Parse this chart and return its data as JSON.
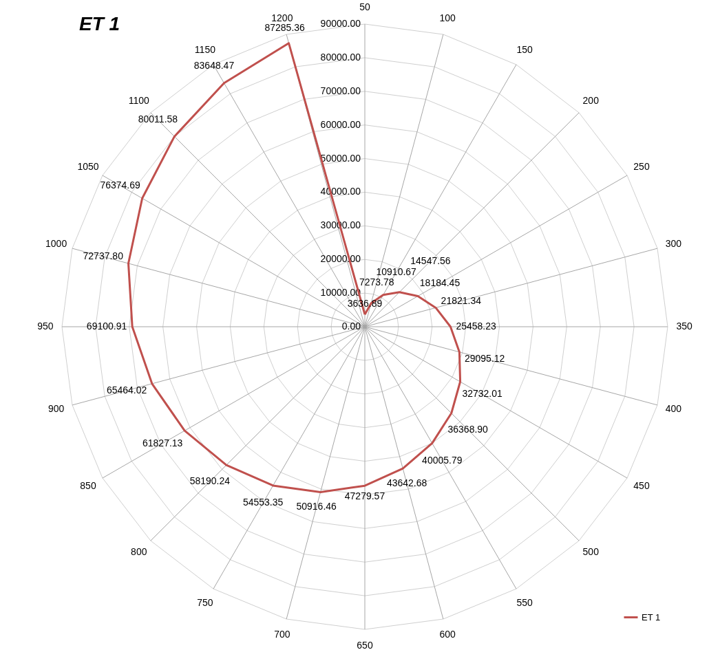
{
  "chart_data": {
    "type": "radar",
    "title": "ET 1",
    "categories": [
      "50",
      "100",
      "150",
      "200",
      "250",
      "300",
      "350",
      "400",
      "450",
      "500",
      "550",
      "600",
      "650",
      "700",
      "750",
      "800",
      "850",
      "900",
      "950",
      "1000",
      "1050",
      "1100",
      "1150",
      "1200"
    ],
    "series": [
      {
        "name": "ET 1",
        "color": "#c0504d",
        "values": [
          3636.89,
          7273.78,
          10910.67,
          14547.56,
          18184.45,
          21821.34,
          25458.23,
          29095.12,
          32732.01,
          36368.9,
          40005.79,
          43642.68,
          47279.57,
          50916.46,
          54553.35,
          58190.24,
          61827.13,
          65464.02,
          69100.91,
          72737.8,
          76374.69,
          80011.58,
          83648.47,
          87285.36
        ],
        "value_labels": [
          "3636.89",
          "7273.78",
          "10910.67",
          "14547.56",
          "18184.45",
          "21821.34",
          "25458.23",
          "29095.12",
          "32732.01",
          "36368.90",
          "40005.79",
          "43642.68",
          "47279.57",
          "50916.46",
          "54553.35",
          "58190.24",
          "61827.13",
          "65464.02",
          "69100.91",
          "72737.80",
          "76374.69",
          "80011.58",
          "83648.47",
          "87285.36"
        ]
      }
    ],
    "ylim": [
      0,
      90000
    ],
    "yticks": [
      {
        "value": 0,
        "label": "0.00"
      },
      {
        "value": 10000,
        "label": "10000.00"
      },
      {
        "value": 20000,
        "label": "20000.00"
      },
      {
        "value": 30000,
        "label": "30000.00"
      },
      {
        "value": 40000,
        "label": "40000.00"
      },
      {
        "value": 50000,
        "label": "50000.00"
      },
      {
        "value": 60000,
        "label": "60000.00"
      },
      {
        "value": 70000,
        "label": "70000.00"
      },
      {
        "value": 80000,
        "label": "80000.00"
      },
      {
        "value": 90000,
        "label": "90000.00"
      }
    ],
    "grid": true,
    "legend": "bottom right"
  }
}
